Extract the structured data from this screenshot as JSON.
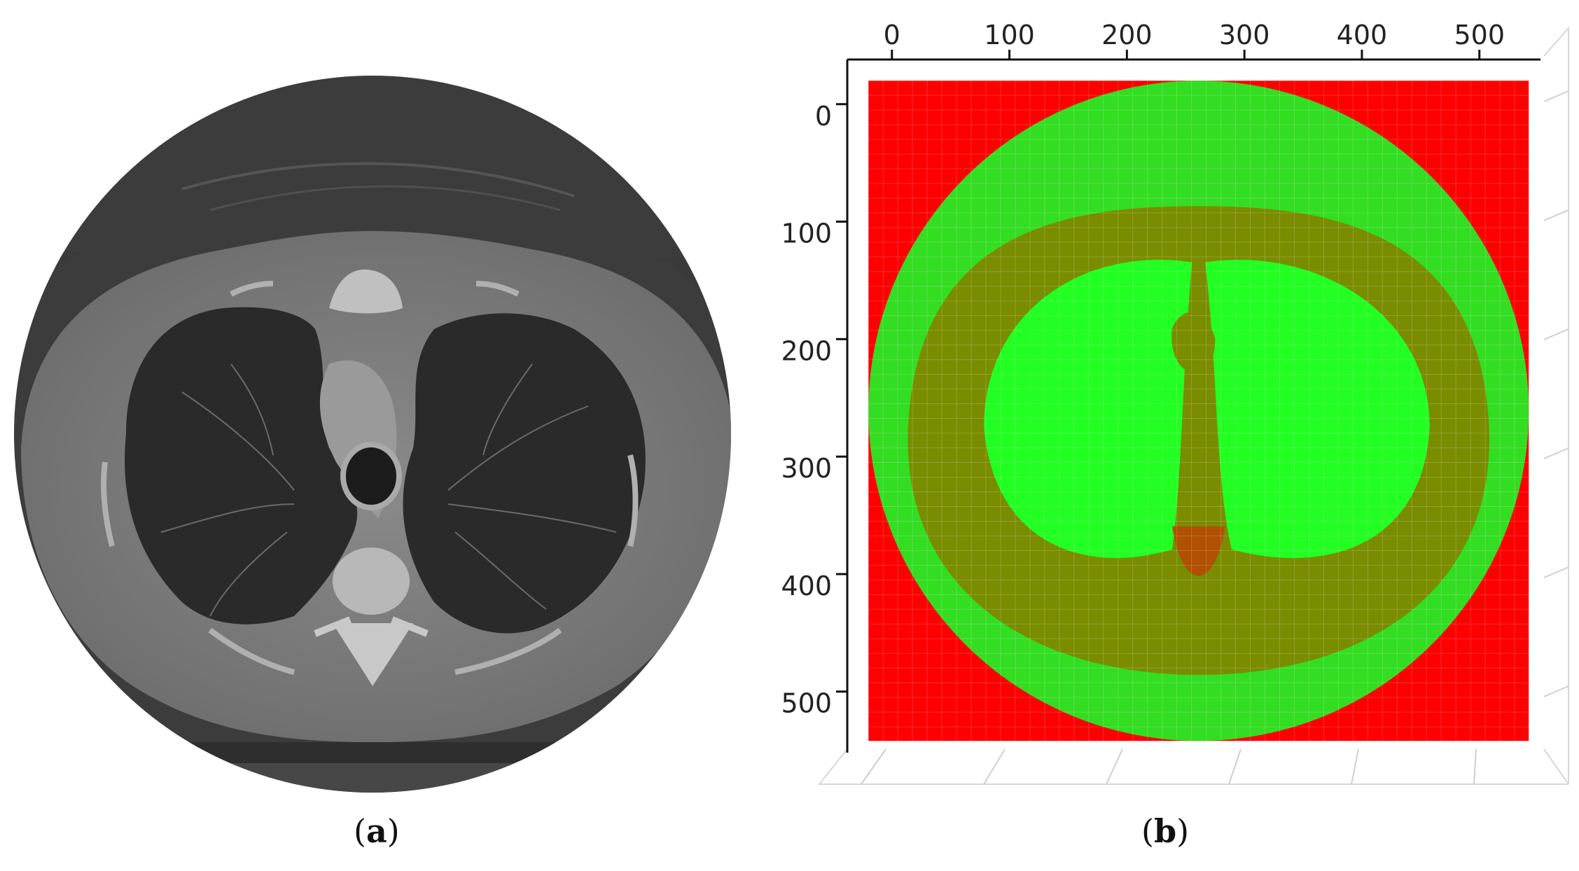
{
  "panels": [
    {
      "id": "a",
      "caption_open": "(",
      "caption_letter": "a",
      "caption_close": ")"
    },
    {
      "id": "b",
      "caption_open": "(",
      "caption_letter": "b",
      "caption_close": ")"
    }
  ],
  "chart_data": {
    "type": "heatmap",
    "title": "",
    "xlabel": "",
    "ylabel": "",
    "x_ticks": [
      0,
      100,
      200,
      300,
      400,
      500
    ],
    "y_ticks": [
      0,
      100,
      200,
      300,
      400,
      500
    ],
    "xlim": [
      -38,
      552
    ],
    "ylim": [
      -38,
      552
    ],
    "extent": [
      -20,
      542,
      -20,
      542
    ],
    "grid": true,
    "colors": {
      "background": "#ff0000",
      "tissue": "#7a8c00",
      "lung": "#22ff22",
      "body": "#33dd22"
    }
  }
}
